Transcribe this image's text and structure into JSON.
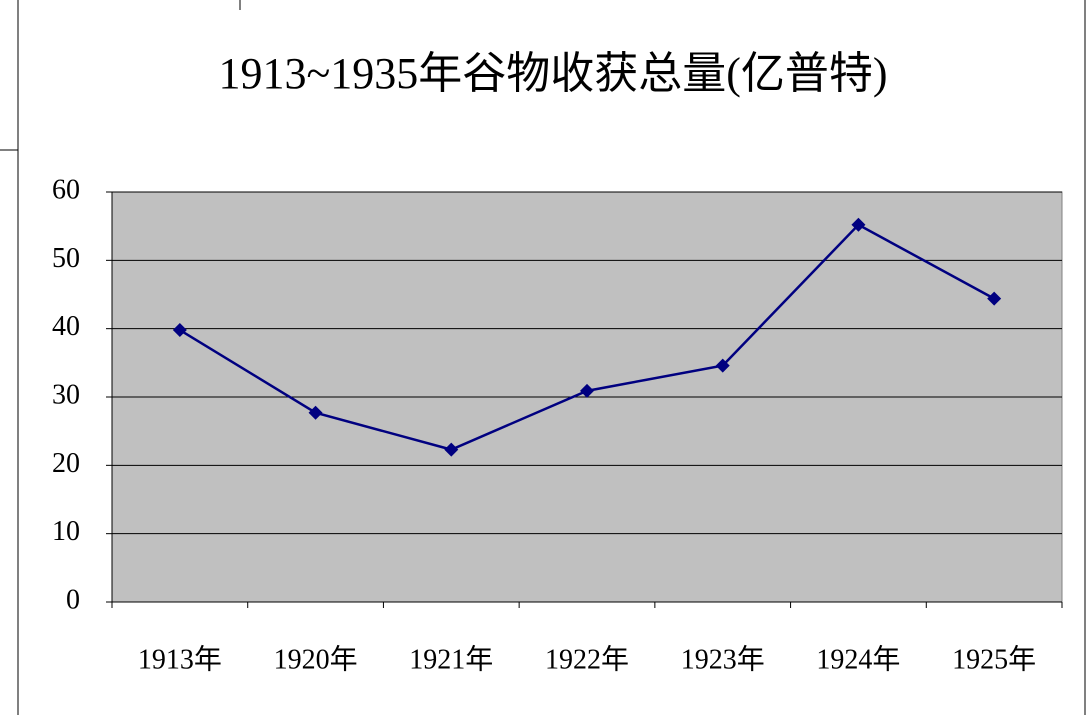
{
  "chart_data": {
    "type": "line",
    "title": "1913~1935年谷物收获总量(亿普特)",
    "categories": [
      "1913年",
      "1920年",
      "1921年",
      "1922年",
      "1923年",
      "1924年",
      "1925年"
    ],
    "series": [
      {
        "name": "谷物收获总量",
        "color": "#000080",
        "values": [
          39.8,
          27.7,
          22.3,
          30.9,
          34.6,
          55.2,
          44.4
        ]
      }
    ],
    "ylim": [
      0,
      60
    ],
    "yticks": [
      0,
      10,
      20,
      30,
      40,
      50,
      60
    ],
    "grid": true
  }
}
